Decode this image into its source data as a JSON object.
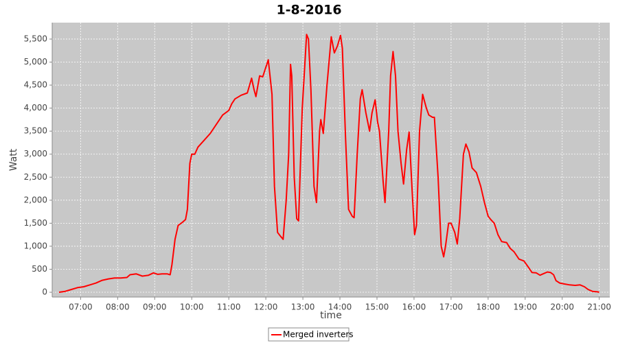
{
  "chart_data": {
    "type": "line",
    "title": "1-8-2016",
    "x_label": "time",
    "y_label": "Watt",
    "xlim": [
      374,
      1277
    ],
    "ylim": [
      -104,
      5857
    ],
    "grid": true,
    "legend": "bottom",
    "xticks": [
      {
        "value": 420,
        "label": "07:00"
      },
      {
        "value": 480,
        "label": "08:00"
      },
      {
        "value": 540,
        "label": "09:00"
      },
      {
        "value": 600,
        "label": "10:00"
      },
      {
        "value": 660,
        "label": "11:00"
      },
      {
        "value": 720,
        "label": "12:00"
      },
      {
        "value": 780,
        "label": "13:00"
      },
      {
        "value": 840,
        "label": "14:00"
      },
      {
        "value": 900,
        "label": "15:00"
      },
      {
        "value": 960,
        "label": "16:00"
      },
      {
        "value": 1020,
        "label": "17:00"
      },
      {
        "value": 1080,
        "label": "18:00"
      },
      {
        "value": 1140,
        "label": "19:00"
      },
      {
        "value": 1200,
        "label": "20:00"
      },
      {
        "value": 1260,
        "label": "21:00"
      }
    ],
    "yticks": [
      0,
      500,
      {
        "value": 1000,
        "label": "1,000"
      },
      {
        "value": 1500,
        "label": "1,500"
      },
      {
        "value": 2000,
        "label": "2,000"
      },
      {
        "value": 2500,
        "label": "2,500"
      },
      {
        "value": 3000,
        "label": "3,000"
      },
      {
        "value": 3500,
        "label": "3,500"
      },
      {
        "value": 4000,
        "label": "4,000"
      },
      {
        "value": 4500,
        "label": "4,500"
      },
      {
        "value": 5000,
        "label": "5,000"
      },
      {
        "value": 5500,
        "label": "5,500"
      }
    ],
    "x": [
      385,
      395,
      405,
      415,
      425,
      435,
      445,
      455,
      465,
      475,
      485,
      495,
      500,
      510,
      520,
      530,
      538,
      545,
      552,
      560,
      565,
      568,
      573,
      578,
      585,
      590,
      593,
      597,
      600,
      605,
      610,
      620,
      630,
      640,
      650,
      660,
      665,
      670,
      680,
      690,
      697,
      701,
      704,
      710,
      715,
      724,
      730,
      734,
      739,
      743,
      748,
      753,
      757,
      760,
      762,
      766,
      770,
      773,
      779,
      786,
      789,
      793,
      798,
      802,
      807,
      809,
      813,
      819,
      826,
      831,
      836,
      841,
      844,
      849,
      854,
      860,
      863,
      868,
      873,
      876,
      882,
      888,
      892,
      897,
      901,
      904,
      910,
      913,
      919,
      922,
      926,
      930,
      934,
      939,
      943,
      948,
      952,
      957,
      961,
      964,
      969,
      974,
      980,
      984,
      990,
      993,
      999,
      1004,
      1008,
      1011,
      1016,
      1020,
      1026,
      1030,
      1034,
      1040,
      1044,
      1049,
      1054,
      1061,
      1068,
      1074,
      1080,
      1085,
      1090,
      1096,
      1102,
      1110,
      1116,
      1122,
      1130,
      1138,
      1146,
      1151,
      1158,
      1164,
      1169,
      1176,
      1181,
      1186,
      1190,
      1196,
      1203,
      1212,
      1221,
      1229,
      1236,
      1242,
      1249,
      1257,
      1260
    ],
    "series": [
      {
        "name": "Merged inverters",
        "color": "#ff0000",
        "values": [
          0,
          20,
          60,
          100,
          120,
          160,
          200,
          260,
          290,
          310,
          310,
          320,
          380,
          400,
          350,
          370,
          420,
          390,
          400,
          400,
          380,
          600,
          1150,
          1450,
          1520,
          1580,
          1800,
          2800,
          3000,
          3000,
          3150,
          3300,
          3450,
          3650,
          3850,
          3950,
          4100,
          4200,
          4280,
          4330,
          4650,
          4400,
          4250,
          4700,
          4680,
          5050,
          4300,
          2300,
          1300,
          1230,
          1150,
          2000,
          3000,
          4950,
          4700,
          2500,
          1600,
          1550,
          4000,
          5600,
          5500,
          4400,
          2300,
          1950,
          3500,
          3750,
          3450,
          4500,
          5550,
          5200,
          5350,
          5580,
          5300,
          3400,
          1800,
          1650,
          1620,
          3000,
          4200,
          4400,
          3900,
          3500,
          3900,
          4180,
          3700,
          3500,
          2400,
          1950,
          3500,
          4700,
          5230,
          4700,
          3500,
          2800,
          2350,
          3100,
          3480,
          2200,
          1250,
          1450,
          3500,
          4300,
          4000,
          3850,
          3800,
          3800,
          2500,
          1000,
          770,
          1000,
          1500,
          1500,
          1300,
          1050,
          1600,
          3000,
          3220,
          3050,
          2700,
          2600,
          2300,
          1950,
          1650,
          1570,
          1500,
          1250,
          1100,
          1080,
          950,
          880,
          720,
          680,
          530,
          430,
          420,
          370,
          400,
          440,
          430,
          380,
          250,
          200,
          180,
          160,
          150,
          160,
          120,
          60,
          20,
          10,
          0
        ]
      }
    ]
  }
}
